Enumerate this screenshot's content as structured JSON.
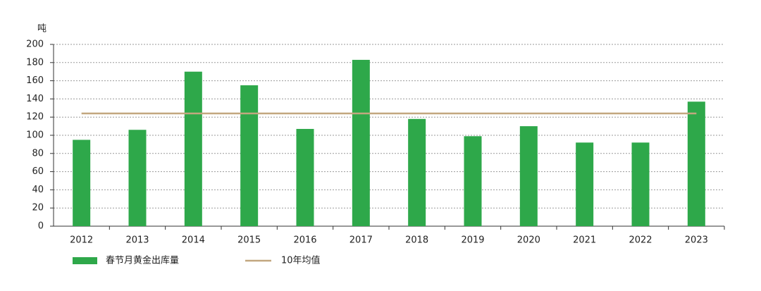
{
  "chart_data": {
    "type": "bar",
    "y_label": "吨",
    "categories": [
      "2012",
      "2013",
      "2014",
      "2015",
      "2016",
      "2017",
      "2018",
      "2019",
      "2020",
      "2021",
      "2022",
      "2023"
    ],
    "series": [
      {
        "name": "春节月黄金出库量",
        "type": "bar",
        "color": "#2ea84a",
        "values": [
          95,
          106,
          170,
          155,
          107,
          183,
          118,
          99,
          110,
          92,
          92,
          137
        ]
      },
      {
        "name": "10年均值",
        "type": "line",
        "color": "#c2a77f",
        "values": [
          124,
          124,
          124,
          124,
          124,
          124,
          124,
          124,
          124,
          124,
          124,
          124
        ]
      }
    ],
    "ylim": [
      0,
      200
    ],
    "yticks": [
      0,
      20,
      40,
      60,
      80,
      100,
      120,
      140,
      160,
      180,
      200
    ],
    "grid": true
  }
}
